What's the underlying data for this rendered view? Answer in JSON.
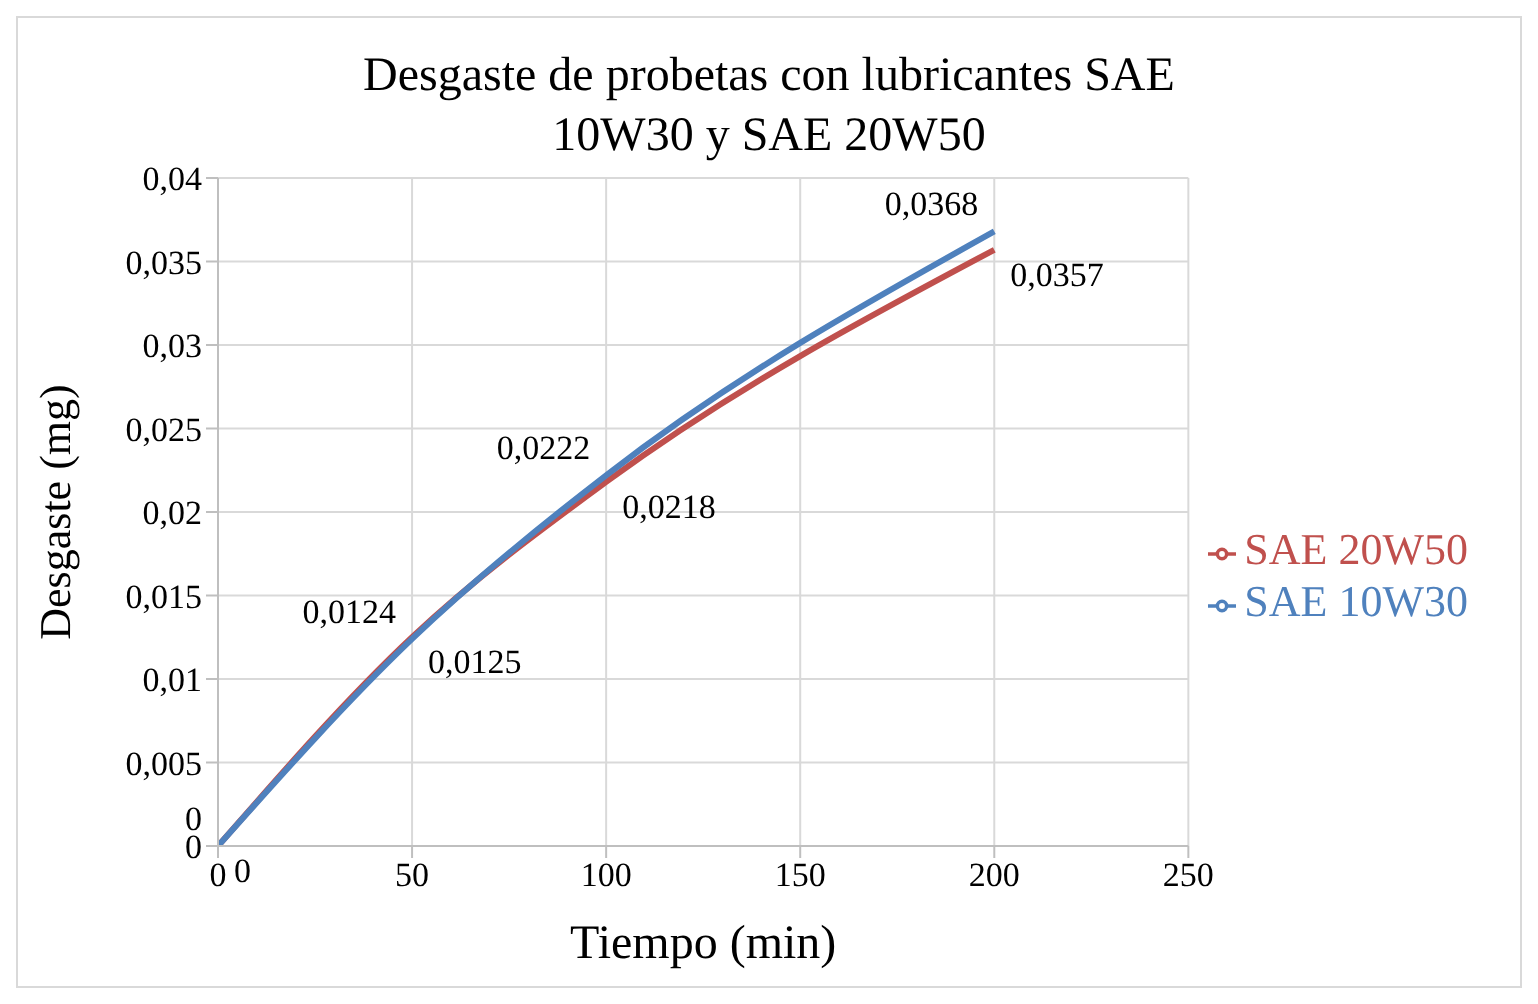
{
  "chart_data": {
    "type": "line",
    "title": "Desgaste de probetas con lubricantes SAE 10W30 y SAE 20W50",
    "xlabel": "Tiempo (min)",
    "ylabel": "Desgaste (mg)",
    "x": [
      0,
      50,
      100,
      200
    ],
    "series": [
      {
        "name": "SAE 20W50",
        "color": "#c0504d",
        "values": [
          0,
          0.0125,
          0.0218,
          0.0357
        ],
        "value_labels": [
          "0",
          "0,0125",
          "0,0218",
          "0,0357"
        ]
      },
      {
        "name": "SAE 10W30",
        "color": "#4f81bd",
        "values": [
          0,
          0.0124,
          0.0222,
          0.0368
        ],
        "value_labels": [
          "0",
          "0,0124",
          "0,0222",
          "0,0368"
        ]
      }
    ],
    "xlim": [
      0,
      250
    ],
    "xticks": [
      0,
      50,
      100,
      150,
      200,
      250
    ],
    "ylim": [
      0,
      0.04
    ],
    "yticks": [
      {
        "value": 0,
        "label": "0"
      },
      {
        "value": 0.005,
        "label": "0,005"
      },
      {
        "value": 0.01,
        "label": "0,01"
      },
      {
        "value": 0.015,
        "label": "0,015"
      },
      {
        "value": 0.02,
        "label": "0,02"
      },
      {
        "value": 0.025,
        "label": "0,025"
      },
      {
        "value": 0.03,
        "label": "0,03"
      },
      {
        "value": 0.035,
        "label": "0,035"
      },
      {
        "value": 0.04,
        "label": "0,04"
      }
    ],
    "grid": true,
    "legend": "right",
    "marker": "none",
    "line_style": "solid"
  }
}
